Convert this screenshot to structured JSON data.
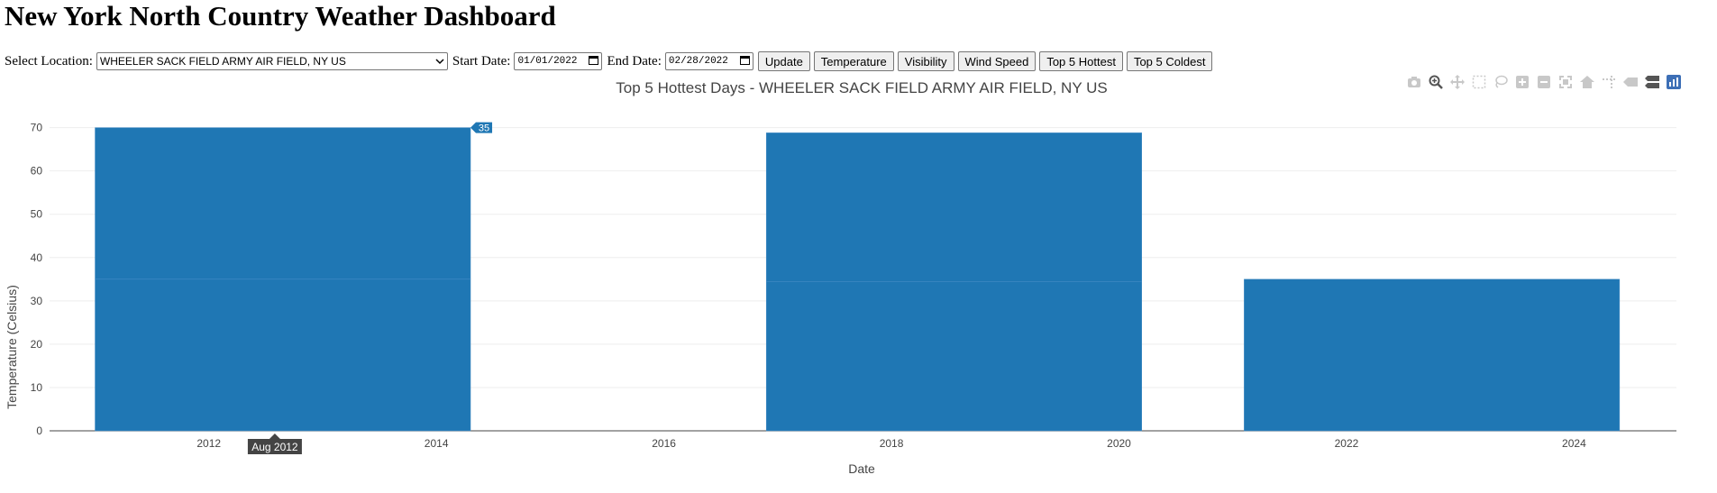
{
  "page": {
    "title": "New York North Country Weather Dashboard"
  },
  "controls": {
    "location_label": "Select Location:",
    "location_value": "WHEELER SACK FIELD ARMY AIR FIELD, NY US",
    "start_label": "Start Date:",
    "start_value": "01/01/2022",
    "end_label": "End Date:",
    "end_value": "02/28/2022",
    "buttons": [
      "Update",
      "Temperature",
      "Visibility",
      "Wind Speed",
      "Top 5 Hottest",
      "Top 5 Coldest"
    ]
  },
  "modebar": [
    "camera-icon",
    "zoom-icon",
    "pan-icon",
    "box-select-icon",
    "lasso-icon",
    "zoom-in-icon",
    "zoom-out-icon",
    "autoscale-icon",
    "reset-axes-icon",
    "spike-lines-icon",
    "hover-closest-icon",
    "hover-compare-icon",
    "plotly-logo-icon"
  ],
  "chart_data": {
    "type": "bar",
    "title": "Top 5 Hottest Days - WHEELER SACK FIELD ARMY AIR FIELD, NY US",
    "xlabel": "Date",
    "ylabel": "Temperature (Celsius)",
    "xlim": [
      2010.6,
      2024.9
    ],
    "ylim": [
      0,
      72
    ],
    "yticks": [
      0,
      10,
      20,
      30,
      40,
      50,
      60,
      70
    ],
    "xticks": [
      2012,
      2014,
      2016,
      2018,
      2020,
      2022,
      2024
    ],
    "bar_color": "#1f77b4",
    "bars": [
      {
        "x_start": 2011.0,
        "x_end": 2014.3,
        "segments": [
          35,
          35
        ]
      },
      {
        "x_start": 2016.9,
        "x_end": 2020.2,
        "segments": [
          34.4,
          34.4
        ]
      },
      {
        "x_start": 2021.1,
        "x_end": 2024.4,
        "segments": [
          35
        ]
      }
    ],
    "hover": {
      "value": "35",
      "x_label": "Aug 2012"
    },
    "grid": true
  }
}
